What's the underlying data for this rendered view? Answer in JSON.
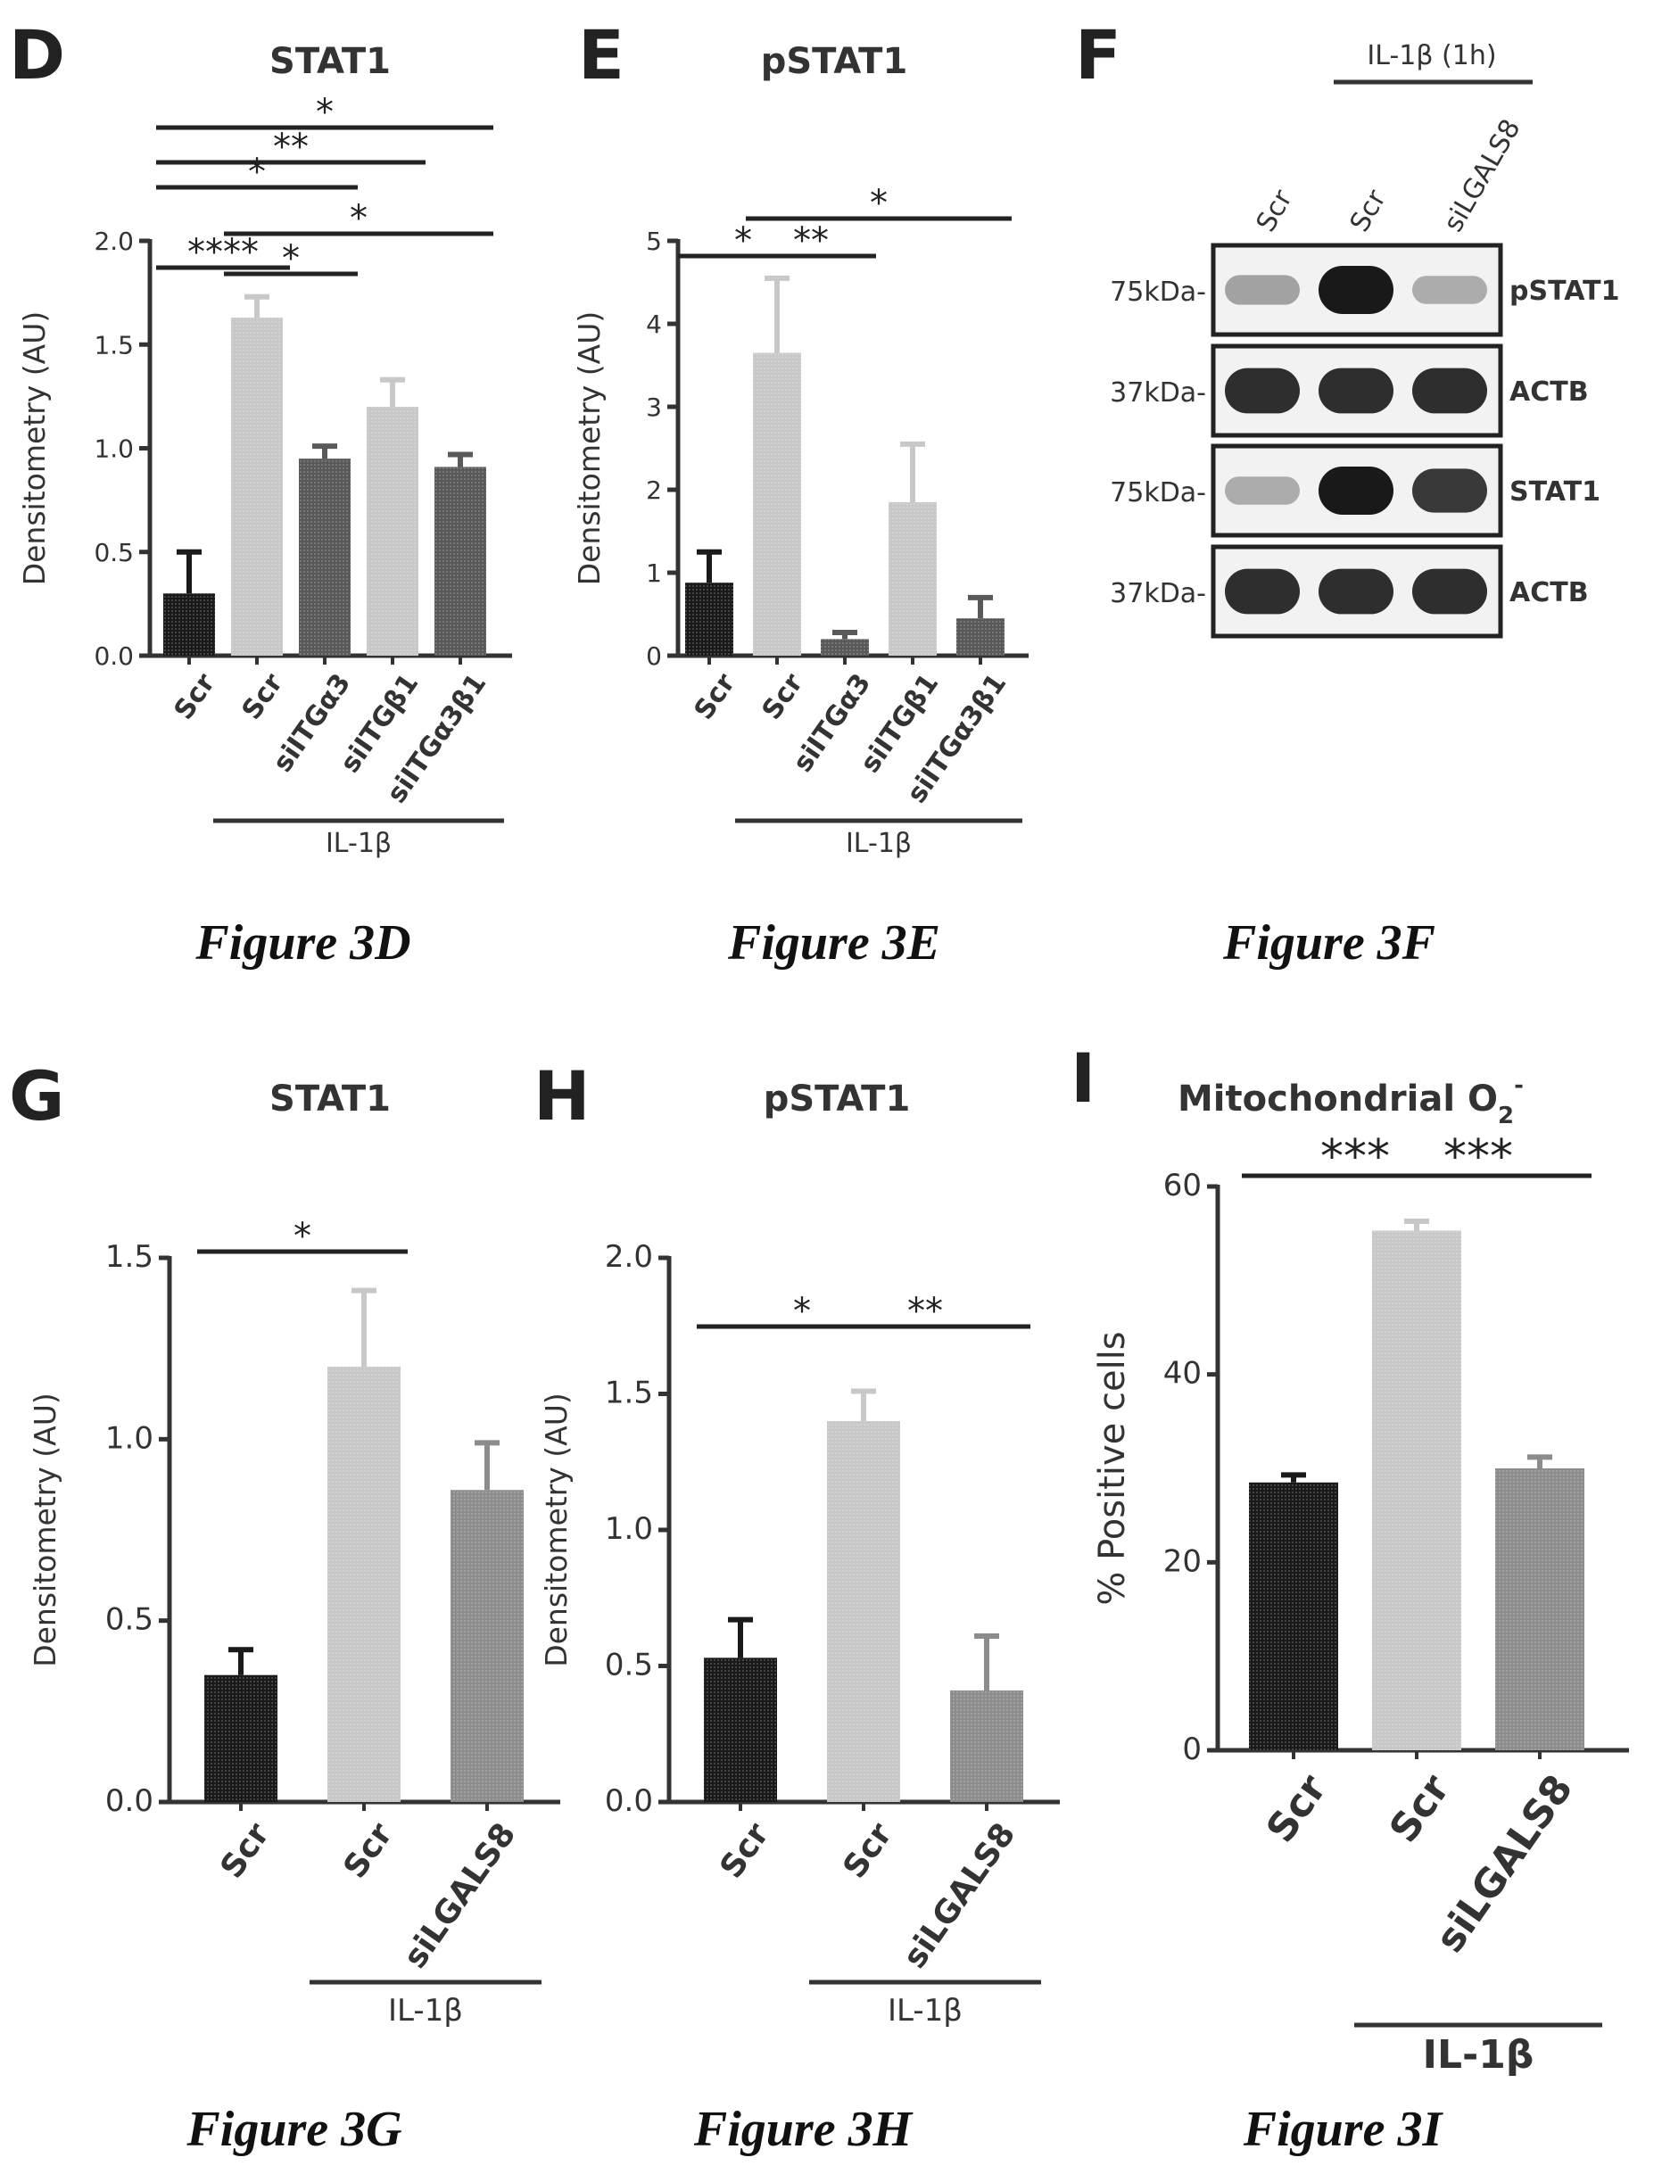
{
  "captions": {
    "d": "Figure 3D",
    "e": "Figure 3E",
    "f": "Figure 3F",
    "g": "Figure 3G",
    "h": "Figure 3H",
    "i": "Figure 3I"
  },
  "colors": {
    "black_bar": "#1a1a1a",
    "dark_gray_bar": "#595959",
    "mid_gray_bar": "#8c8c8c",
    "light_gray_bar": "#c8c8c8",
    "axis": "#333333"
  },
  "chart_data": [
    {
      "id": "d",
      "type": "bar",
      "panel_label": "D",
      "title": "STAT1",
      "ylabel": "Densitometry (AU)",
      "ylim": [
        0,
        2.0
      ],
      "yticks": [
        0.0,
        0.5,
        1.0,
        1.5,
        2.0
      ],
      "ytick_labels": [
        "0.0",
        "0.5",
        "1.0",
        "1.5",
        "2.0"
      ],
      "categories": [
        "Scr",
        "Scr",
        "siITGα3",
        "siITGβ1",
        "siITGα3β1"
      ],
      "values": [
        0.3,
        1.63,
        0.95,
        1.2,
        0.91
      ],
      "errors": [
        0.2,
        0.1,
        0.06,
        0.13,
        0.06
      ],
      "bar_colors": [
        "#1a1a1a",
        "#c8c8c8",
        "#595959",
        "#c8c8c8",
        "#595959"
      ],
      "group_label": "IL-1β",
      "group_span": [
        1,
        4
      ],
      "significance": [
        {
          "from": 0,
          "to": 1,
          "label": "****"
        },
        {
          "from": 1,
          "to": 2,
          "label": "*"
        },
        {
          "from": 1,
          "to": 4,
          "label": "*"
        },
        {
          "from": 0,
          "to": 2,
          "label": "*"
        },
        {
          "from": 0,
          "to": 3,
          "label": "**"
        },
        {
          "from": 0,
          "to": 4,
          "label": "*"
        }
      ]
    },
    {
      "id": "e",
      "type": "bar",
      "panel_label": "E",
      "title": "pSTAT1",
      "ylabel": "Densitometry (AU)",
      "ylim": [
        0,
        5
      ],
      "yticks": [
        0,
        1,
        2,
        3,
        4,
        5
      ],
      "ytick_labels": [
        "0",
        "1",
        "2",
        "3",
        "4",
        "5"
      ],
      "categories": [
        "Scr",
        "Scr",
        "siITGα3",
        "siITGβ1",
        "siITGα3β1"
      ],
      "values": [
        0.88,
        3.65,
        0.2,
        1.85,
        0.45
      ],
      "errors": [
        0.37,
        0.9,
        0.08,
        0.7,
        0.25
      ],
      "bar_colors": [
        "#1a1a1a",
        "#c8c8c8",
        "#595959",
        "#c8c8c8",
        "#595959"
      ],
      "group_label": "IL-1β",
      "group_span": [
        1,
        4
      ],
      "significance": [
        {
          "from": 0,
          "to": 1,
          "label": "*"
        },
        {
          "from": 1,
          "to": 2,
          "label": "**"
        },
        {
          "from": 1,
          "to": 4,
          "label": "*"
        }
      ]
    },
    {
      "id": "g",
      "type": "bar",
      "panel_label": "G",
      "title": "STAT1",
      "ylabel": "Densitometry (AU)",
      "ylim": [
        0,
        1.5
      ],
      "yticks": [
        0.0,
        0.5,
        1.0,
        1.5
      ],
      "ytick_labels": [
        "0.0",
        "0.5",
        "1.0",
        "1.5"
      ],
      "categories": [
        "Scr",
        "Scr",
        "siLGALS8"
      ],
      "values": [
        0.35,
        1.2,
        0.86
      ],
      "errors": [
        0.07,
        0.21,
        0.13
      ],
      "bar_colors": [
        "#1a1a1a",
        "#c8c8c8",
        "#8c8c8c"
      ],
      "group_label": "IL-1β",
      "group_span": [
        1,
        2
      ],
      "significance": [
        {
          "from": 0,
          "to": 1,
          "label": "*"
        }
      ]
    },
    {
      "id": "h",
      "type": "bar",
      "panel_label": "H",
      "title": "pSTAT1",
      "ylabel": "Densitometry (AU)",
      "ylim": [
        0,
        2.0
      ],
      "yticks": [
        0.0,
        0.5,
        1.0,
        1.5,
        2.0
      ],
      "ytick_labels": [
        "0.0",
        "0.5",
        "1.0",
        "1.5",
        "2.0"
      ],
      "categories": [
        "Scr",
        "Scr",
        "siLGALS8"
      ],
      "values": [
        0.53,
        1.4,
        0.41
      ],
      "errors": [
        0.14,
        0.11,
        0.2
      ],
      "bar_colors": [
        "#1a1a1a",
        "#c8c8c8",
        "#8c8c8c"
      ],
      "group_label": "IL-1β",
      "group_span": [
        1,
        2
      ],
      "significance": [
        {
          "from": 0,
          "to": 1,
          "label": "*"
        },
        {
          "from": 1,
          "to": 2,
          "label": "**"
        }
      ]
    },
    {
      "id": "i",
      "type": "bar",
      "panel_label": "I",
      "title": "Mitochondrial O",
      "title_sub": "2",
      "title_sup": "-",
      "ylabel": "% Positive cells",
      "ylim": [
        0,
        60
      ],
      "yticks": [
        0,
        20,
        40,
        60
      ],
      "ytick_labels": [
        "0",
        "20",
        "40",
        "60"
      ],
      "categories": [
        "Scr",
        "Scr",
        "siLGALS8"
      ],
      "values": [
        28.5,
        55.3,
        30.0
      ],
      "errors": [
        0.8,
        1.0,
        1.2
      ],
      "bar_colors": [
        "#1a1a1a",
        "#c8c8c8",
        "#8c8c8c"
      ],
      "group_label": "IL-1β",
      "group_span": [
        1,
        2
      ],
      "significance": [
        {
          "from": 0,
          "to": 1,
          "label": "***"
        },
        {
          "from": 1,
          "to": 2,
          "label": "***"
        }
      ]
    }
  ],
  "blot": {
    "panel_label": "F",
    "treatment_label": "IL-1β (1h)",
    "lane_labels": [
      "Scr",
      "Scr",
      "siLGALS8"
    ],
    "treatment_span": [
      1,
      2
    ],
    "rows": [
      {
        "mw": "75kDa-",
        "name": "pSTAT1",
        "intensity": [
          0.35,
          1.0,
          0.3
        ]
      },
      {
        "mw": "37kDa-",
        "name": "ACTB",
        "intensity": [
          0.9,
          0.9,
          0.9
        ]
      },
      {
        "mw": "75kDa-",
        "name": "STAT1",
        "intensity": [
          0.3,
          1.0,
          0.85
        ]
      },
      {
        "mw": "37kDa-",
        "name": "ACTB",
        "intensity": [
          0.9,
          0.9,
          0.9
        ]
      }
    ]
  }
}
